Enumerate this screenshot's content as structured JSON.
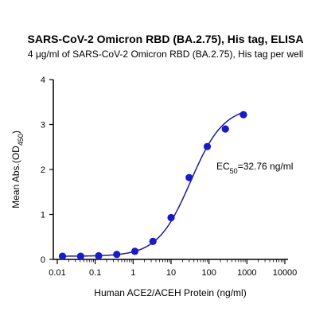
{
  "chart_data": {
    "type": "scatter",
    "title": "SARS-CoV-2 Omicron RBD (BA.2.75), His tag, ELISA",
    "subtitle": "4 μg/ml of SARS-CoV-2 Omicron RBD (BA.2.75), His tag per well",
    "xlabel": "Human ACE2/ACEH Protein (ng/ml)",
    "ylabel_main": "Mean Abs.(OD",
    "ylabel_sub": "450",
    "ylabel_end": ")",
    "x_scale": "log",
    "xlim": [
      0.01,
      10000
    ],
    "ylim": [
      0,
      4
    ],
    "x_ticks": [
      0.01,
      0.1,
      1,
      10,
      100,
      1000,
      10000
    ],
    "x_tick_labels": [
      "0.01",
      "0.1",
      "1",
      "10",
      "100",
      "1000",
      "10000"
    ],
    "y_ticks": [
      0,
      1,
      2,
      3,
      4
    ],
    "y_tick_labels": [
      "0",
      "1",
      "2",
      "3",
      "4"
    ],
    "annotation_main": "EC",
    "annotation_sub": "50",
    "annotation_rest": "=32.76 ng/ml",
    "series": [
      {
        "x": [
          0.0137,
          0.0412,
          0.123,
          0.37,
          1.11,
          3.33,
          10,
          30,
          90,
          270,
          810
        ],
        "y": [
          0.07,
          0.07,
          0.08,
          0.11,
          0.18,
          0.4,
          0.93,
          1.82,
          2.51,
          2.9,
          3.22
        ]
      }
    ],
    "fit_curve": {
      "bottom": 0.07,
      "top": 3.4,
      "ec50": 32.76,
      "hill": 1.0
    },
    "colors": {
      "series": "#1a1ac8",
      "curve": "#1a1a9e",
      "axis": "#000000"
    }
  }
}
